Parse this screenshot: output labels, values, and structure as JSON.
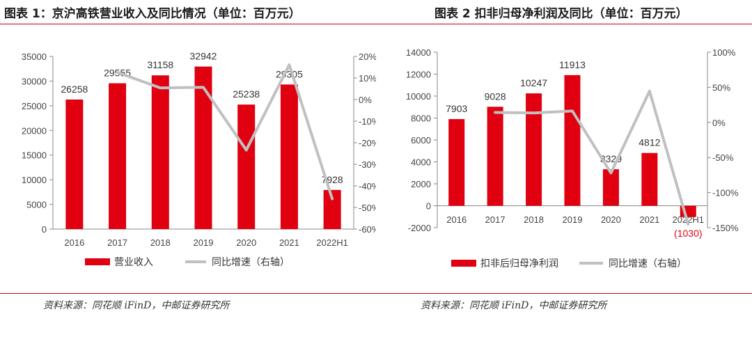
{
  "colors": {
    "bar": "#e00010",
    "line": "#c0c0c0",
    "rule": "#c00000",
    "axis": "#888888",
    "neg_label": "#e00010"
  },
  "chart_data": [
    {
      "type": "bar",
      "title": "图表 1：京沪高铁营业收入及同比情况（单位：百万元）",
      "categories": [
        "2016",
        "2017",
        "2018",
        "2019",
        "2020",
        "2021",
        "2022H1"
      ],
      "series": [
        {
          "name": "营业收入",
          "type": "bar",
          "axis": "left",
          "values": [
            26258,
            29555,
            31158,
            32942,
            25238,
            29305,
            7928
          ]
        },
        {
          "name": "同比增速（右轴）",
          "type": "line",
          "axis": "right",
          "values": [
            null,
            12.6,
            5.4,
            5.7,
            -23.4,
            16.1,
            -46.0
          ]
        }
      ],
      "data_labels": [
        "26258",
        "29555",
        "31158",
        "32942",
        "25238",
        "29305",
        "7928"
      ],
      "y_left": {
        "min": 0,
        "max": 35000,
        "step": 5000,
        "ticks": [
          "0",
          "5000",
          "10000",
          "15000",
          "20000",
          "25000",
          "30000",
          "35000"
        ]
      },
      "y_right": {
        "min": -60,
        "max": 20,
        "step": 10,
        "ticks": [
          "-60%",
          "-50%",
          "-40%",
          "-30%",
          "-20%",
          "-10%",
          "0%",
          "10%",
          "20%"
        ]
      },
      "legend": [
        "营业收入",
        "同比增速（右轴）"
      ],
      "source": "资料来源：同花顺 iFinD，中邮证券研究所"
    },
    {
      "type": "bar",
      "title": "图表 2 扣非归母净利润及同比（单位：百万元）",
      "categories": [
        "2016",
        "2017",
        "2018",
        "2019",
        "2020",
        "2021",
        "2022H1"
      ],
      "series": [
        {
          "name": "扣非后归母净利润",
          "type": "bar",
          "axis": "left",
          "values": [
            7903,
            9028,
            10247,
            11913,
            3329,
            4812,
            -1030
          ]
        },
        {
          "name": "同比增速（右轴）",
          "type": "line",
          "axis": "right",
          "values": [
            null,
            14.2,
            13.5,
            16.3,
            -72.1,
            44.6,
            -145.0
          ]
        }
      ],
      "data_labels": [
        "7903",
        "9028",
        "10247",
        "11913",
        "3329",
        "4812",
        "(1030)"
      ],
      "y_left": {
        "min": -2000,
        "max": 14000,
        "step": 2000,
        "ticks": [
          "-2000",
          "0",
          "2000",
          "4000",
          "6000",
          "8000",
          "10000",
          "12000",
          "14000"
        ]
      },
      "y_right": {
        "min": -150,
        "max": 100,
        "step": 50,
        "ticks": [
          "-150%",
          "-100%",
          "-50%",
          "0%",
          "50%",
          "100%"
        ]
      },
      "legend": [
        "扣非后归母净利润",
        "同比增速（右轴）"
      ],
      "source": "资料来源：同花顺 iFinD，中邮证券研究所"
    }
  ]
}
